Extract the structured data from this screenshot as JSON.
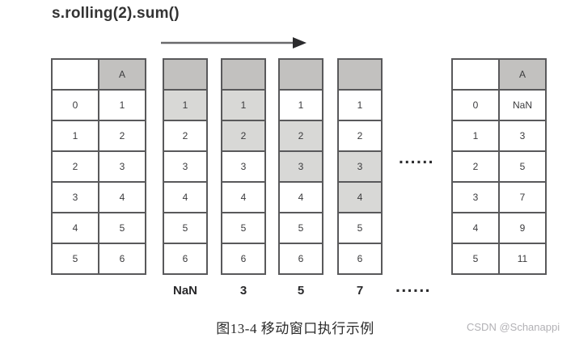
{
  "title": "s.rolling(2).sum()",
  "colors": {
    "header_bg": "#c2c1bf",
    "highlight_bg": "#d8d8d6",
    "cell_border": "#59595b",
    "arrow_line": "#6a6a6c",
    "arrow_head": "#2b2b2d",
    "watermark_color": "#b2b1b5"
  },
  "series_table": {
    "header": [
      "",
      "A"
    ],
    "rows": [
      [
        "0",
        "1"
      ],
      [
        "1",
        "2"
      ],
      [
        "2",
        "3"
      ],
      [
        "3",
        "4"
      ],
      [
        "4",
        "5"
      ],
      [
        "5",
        "6"
      ]
    ]
  },
  "window_tables": [
    {
      "values": [
        "1",
        "2",
        "3",
        "4",
        "5",
        "6"
      ],
      "highlighted": [
        0
      ],
      "result": "NaN"
    },
    {
      "values": [
        "1",
        "2",
        "3",
        "4",
        "5",
        "6"
      ],
      "highlighted": [
        0,
        1
      ],
      "result": "3"
    },
    {
      "values": [
        "1",
        "2",
        "3",
        "4",
        "5",
        "6"
      ],
      "highlighted": [
        1,
        2
      ],
      "result": "5"
    },
    {
      "values": [
        "1",
        "2",
        "3",
        "4",
        "5",
        "6"
      ],
      "highlighted": [
        2,
        3
      ],
      "result": "7"
    }
  ],
  "result_table": {
    "header": [
      "",
      "A"
    ],
    "rows": [
      [
        "0",
        "NaN"
      ],
      [
        "1",
        "3"
      ],
      [
        "2",
        "5"
      ],
      [
        "3",
        "7"
      ],
      [
        "4",
        "9"
      ],
      [
        "5",
        "11"
      ]
    ]
  },
  "ellipsis_mid": "......",
  "ellipsis_bottom": "......",
  "caption": "图13-4  移动窗口执行示例",
  "watermark": "CSDN @Schanappi"
}
